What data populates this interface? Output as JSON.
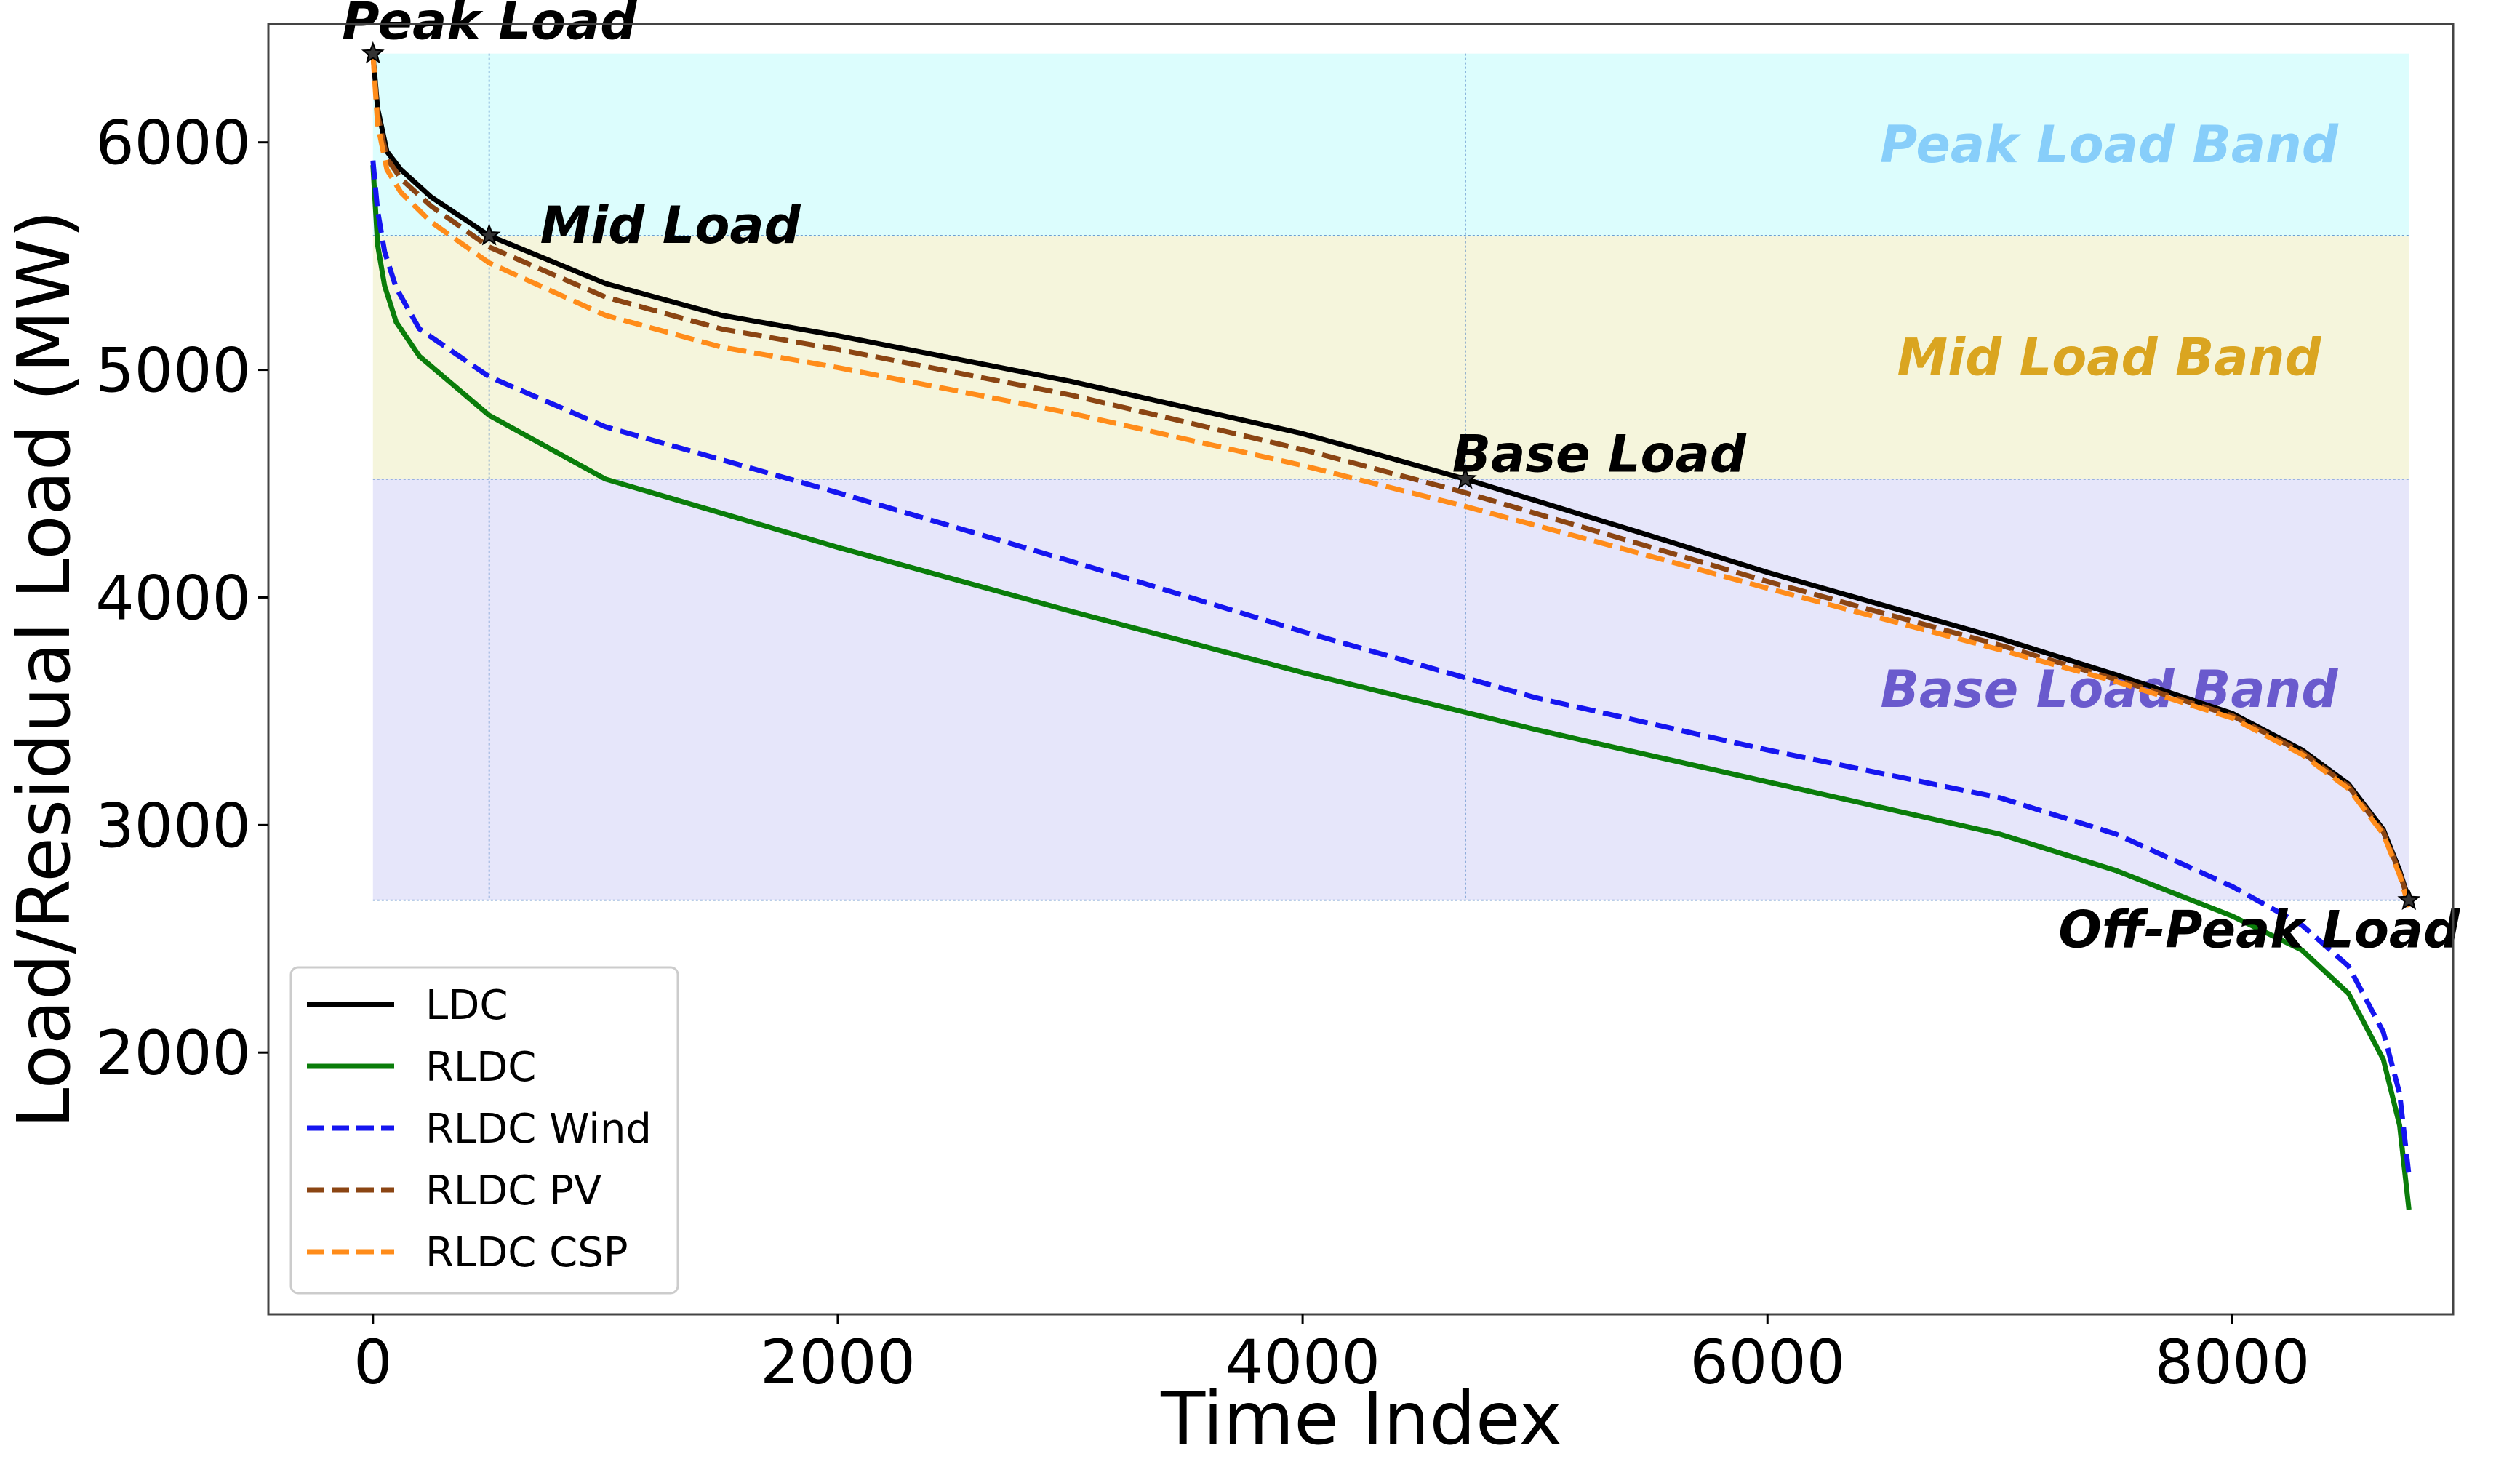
{
  "chart_data": {
    "type": "line",
    "xlabel": "Time Index",
    "ylabel": "Load/Residual Load (MW)",
    "xlim": [
      -450,
      8950
    ],
    "ylim": [
      850,
      6520
    ],
    "xticks": [
      0,
      2000,
      4000,
      6000,
      8000
    ],
    "yticks": [
      2000,
      3000,
      4000,
      5000,
      6000
    ],
    "bands": [
      {
        "name": "Peak Load Band",
        "y0": 5590,
        "y1": 6390,
        "x0": 0,
        "x1": 8760,
        "fill": "#dcfdfd",
        "label_color": "#87cefa"
      },
      {
        "name": "Mid Load Band",
        "y0": 4520,
        "y1": 5590,
        "x0": 0,
        "x1": 8760,
        "fill": "#f5f5dc",
        "label_color": "#daa520"
      },
      {
        "name": "Base Load Band",
        "y0": 2670,
        "y1": 4520,
        "x0": 0,
        "x1": 8760,
        "fill": "#e6e6fa",
        "label_color": "#6a5acd"
      }
    ],
    "reference_lines": {
      "vertical_x": [
        500,
        4700
      ],
      "horizontal_y": [
        5590,
        4520,
        2670
      ]
    },
    "annotations": [
      {
        "text": "Peak Load",
        "x": 0,
        "y": 6390
      },
      {
        "text": "Mid Load",
        "x": 500,
        "y": 5590
      },
      {
        "text": "Base Load",
        "x": 4700,
        "y": 4520
      },
      {
        "text": "Off-Peak Load",
        "x": 8760,
        "y": 2670
      }
    ],
    "series": [
      {
        "name": "LDC",
        "color": "#000000",
        "dash": "solid",
        "x": [
          0,
          20,
          60,
          120,
          250,
          500,
          1000,
          1500,
          2000,
          3000,
          4000,
          4700,
          5500,
          6000,
          7000,
          7500,
          8000,
          8300,
          8500,
          8650,
          8720,
          8760
        ],
        "y": [
          6390,
          6150,
          5960,
          5880,
          5760,
          5590,
          5380,
          5240,
          5150,
          4950,
          4720,
          4520,
          4270,
          4110,
          3820,
          3660,
          3490,
          3330,
          3180,
          2980,
          2800,
          2670
        ]
      },
      {
        "name": "RLDC",
        "color": "#0a7d0a",
        "dash": "solid",
        "x": [
          0,
          20,
          50,
          100,
          200,
          500,
          1000,
          2000,
          3000,
          4000,
          5000,
          6000,
          7000,
          7500,
          8000,
          8300,
          8500,
          8650,
          8720,
          8760
        ],
        "y": [
          5900,
          5550,
          5370,
          5210,
          5060,
          4800,
          4520,
          4220,
          3940,
          3670,
          3420,
          3190,
          2960,
          2800,
          2600,
          2450,
          2260,
          1970,
          1680,
          1310
        ]
      },
      {
        "name": "RLDC Wind",
        "color": "#1515f0",
        "dash": "dashed",
        "x": [
          0,
          20,
          50,
          100,
          200,
          500,
          1000,
          2000,
          3000,
          4000,
          5000,
          6000,
          7000,
          7500,
          8000,
          8300,
          8500,
          8650,
          8720,
          8760
        ],
        "y": [
          5920,
          5700,
          5520,
          5360,
          5180,
          4970,
          4750,
          4460,
          4160,
          3850,
          3560,
          3330,
          3120,
          2960,
          2730,
          2560,
          2380,
          2090,
          1820,
          1460
        ]
      },
      {
        "name": "RLDC PV",
        "color": "#8b4513",
        "dash": "dashed",
        "x": [
          0,
          20,
          60,
          120,
          250,
          500,
          1000,
          1500,
          2000,
          3000,
          4000,
          4700,
          5500,
          6000,
          7000,
          7500,
          8000,
          8300,
          8500,
          8650,
          8720,
          8760
        ],
        "y": [
          6390,
          6120,
          5930,
          5840,
          5720,
          5540,
          5320,
          5180,
          5090,
          4890,
          4650,
          4460,
          4220,
          4070,
          3790,
          3640,
          3480,
          3320,
          3170,
          2970,
          2790,
          2660
        ]
      },
      {
        "name": "RLDC CSP",
        "color": "#ff8c1a",
        "dash": "dashed",
        "x": [
          0,
          20,
          60,
          120,
          250,
          500,
          1000,
          1500,
          2000,
          3000,
          4000,
          4700,
          5500,
          6000,
          7000,
          7500,
          8000,
          8300,
          8500,
          8650,
          8720,
          8760
        ],
        "y": [
          6390,
          6080,
          5880,
          5780,
          5650,
          5470,
          5240,
          5100,
          5010,
          4810,
          4580,
          4400,
          4180,
          4040,
          3770,
          3630,
          3470,
          3310,
          3160,
          2960,
          2780,
          2640
        ]
      }
    ],
    "legend": {
      "placement": "lower-left",
      "entries": [
        "LDC",
        "RLDC",
        "RLDC Wind",
        "RLDC PV",
        "RLDC CSP"
      ]
    }
  }
}
